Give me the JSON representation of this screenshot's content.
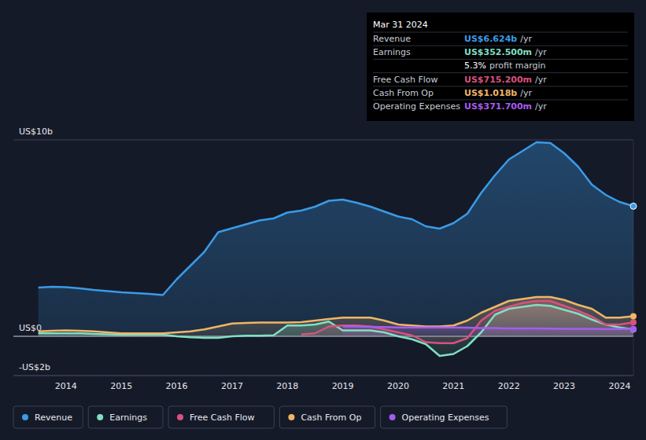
{
  "chart_data": {
    "type": "area",
    "x": [
      2013.5,
      2013.75,
      2014,
      2014.25,
      2014.5,
      2014.75,
      2015,
      2015.25,
      2015.5,
      2015.75,
      2016,
      2016.25,
      2016.5,
      2016.75,
      2017,
      2017.25,
      2017.5,
      2017.75,
      2018,
      2018.25,
      2018.5,
      2018.75,
      2019,
      2019.25,
      2019.5,
      2019.75,
      2020,
      2020.25,
      2020.5,
      2020.75,
      2021,
      2021.25,
      2021.5,
      2021.75,
      2022,
      2022.25,
      2022.5,
      2022.75,
      2023,
      2023.25,
      2023.5,
      2023.75,
      2024,
      2024.25
    ],
    "series": [
      {
        "name": "Revenue",
        "color": "#3a9be8",
        "values": [
          2.48,
          2.52,
          2.5,
          2.44,
          2.36,
          2.3,
          2.24,
          2.2,
          2.16,
          2.1,
          2.9,
          3.6,
          4.3,
          5.3,
          5.5,
          5.7,
          5.9,
          6.0,
          6.3,
          6.4,
          6.6,
          6.9,
          6.96,
          6.8,
          6.6,
          6.35,
          6.1,
          5.96,
          5.6,
          5.48,
          5.76,
          6.24,
          7.3,
          8.2,
          9.0,
          9.44,
          9.88,
          9.84,
          9.32,
          8.64,
          7.72,
          7.2,
          6.84,
          6.624
        ]
      },
      {
        "name": "Earnings",
        "color": "#80dfc3",
        "values": [
          0.15,
          0.15,
          0.15,
          0.15,
          0.12,
          0.1,
          0.08,
          0.08,
          0.08,
          0.08,
          0.0,
          -0.05,
          -0.08,
          -0.08,
          0.0,
          0.03,
          0.03,
          0.05,
          0.55,
          0.55,
          0.6,
          0.75,
          0.3,
          0.3,
          0.3,
          0.2,
          0.0,
          -0.15,
          -0.4,
          -1.0,
          -0.9,
          -0.5,
          0.2,
          1.1,
          1.4,
          1.5,
          1.6,
          1.55,
          1.35,
          1.15,
          0.85,
          0.6,
          0.45,
          0.3525
        ]
      },
      {
        "name": "Free Cash Flow",
        "color": "#d9517f",
        "values": [
          null,
          null,
          null,
          null,
          null,
          null,
          null,
          null,
          null,
          null,
          null,
          null,
          null,
          null,
          null,
          null,
          null,
          null,
          null,
          0.1,
          0.15,
          0.5,
          0.55,
          0.55,
          0.5,
          0.35,
          0.2,
          0.05,
          -0.3,
          -0.35,
          -0.35,
          -0.1,
          0.8,
          1.3,
          1.5,
          1.7,
          1.8,
          1.8,
          1.55,
          1.3,
          1.0,
          0.6,
          0.6,
          0.715
        ]
      },
      {
        "name": "Cash From Op",
        "color": "#f0b566",
        "values": [
          0.25,
          0.28,
          0.3,
          0.28,
          0.25,
          0.2,
          0.15,
          0.15,
          0.15,
          0.15,
          0.2,
          0.25,
          0.35,
          0.5,
          0.65,
          0.68,
          0.7,
          0.7,
          0.7,
          0.72,
          0.8,
          0.88,
          0.95,
          0.95,
          0.95,
          0.8,
          0.6,
          0.55,
          0.5,
          0.5,
          0.55,
          0.8,
          1.2,
          1.5,
          1.8,
          1.9,
          2.0,
          2.0,
          1.85,
          1.6,
          1.4,
          0.95,
          0.95,
          1.018
        ]
      },
      {
        "name": "Operating Expenses",
        "color": "#a65cf0",
        "values": [
          null,
          null,
          null,
          null,
          null,
          null,
          null,
          null,
          null,
          null,
          null,
          null,
          null,
          null,
          null,
          null,
          null,
          null,
          null,
          null,
          null,
          null,
          0.5,
          0.5,
          0.48,
          0.47,
          0.45,
          0.45,
          0.45,
          0.45,
          0.45,
          0.44,
          0.42,
          0.42,
          0.4,
          0.4,
          0.4,
          0.39,
          0.38,
          0.38,
          0.38,
          0.37,
          0.37,
          0.3717
        ]
      }
    ],
    "xlim": [
      2013.05,
      2024.25
    ],
    "xticks": [
      2014,
      2015,
      2016,
      2017,
      2018,
      2019,
      2020,
      2021,
      2022,
      2023,
      2024
    ],
    "ylim": [
      -2,
      10
    ],
    "yticks": [
      {
        "value": 10,
        "label": "US$10b"
      },
      {
        "value": 0,
        "label": "US$0"
      },
      {
        "value": -2,
        "label": "-US$2b"
      }
    ],
    "grid": true,
    "legend": "bottom"
  },
  "tooltip": {
    "title": "Mar 31 2024",
    "rows": [
      {
        "label": "Revenue",
        "value": "US$6.624b",
        "unit": "/yr"
      },
      {
        "label": "Earnings",
        "value": "US$352.500m",
        "unit": "/yr"
      },
      {
        "label": "",
        "value": "5.3%",
        "unit": "profit margin"
      },
      {
        "label": "Free Cash Flow",
        "value": "US$715.200m",
        "unit": "/yr"
      },
      {
        "label": "Cash From Op",
        "value": "US$1.018b",
        "unit": "/yr"
      },
      {
        "label": "Operating Expenses",
        "value": "US$371.700m",
        "unit": "/yr"
      }
    ]
  }
}
